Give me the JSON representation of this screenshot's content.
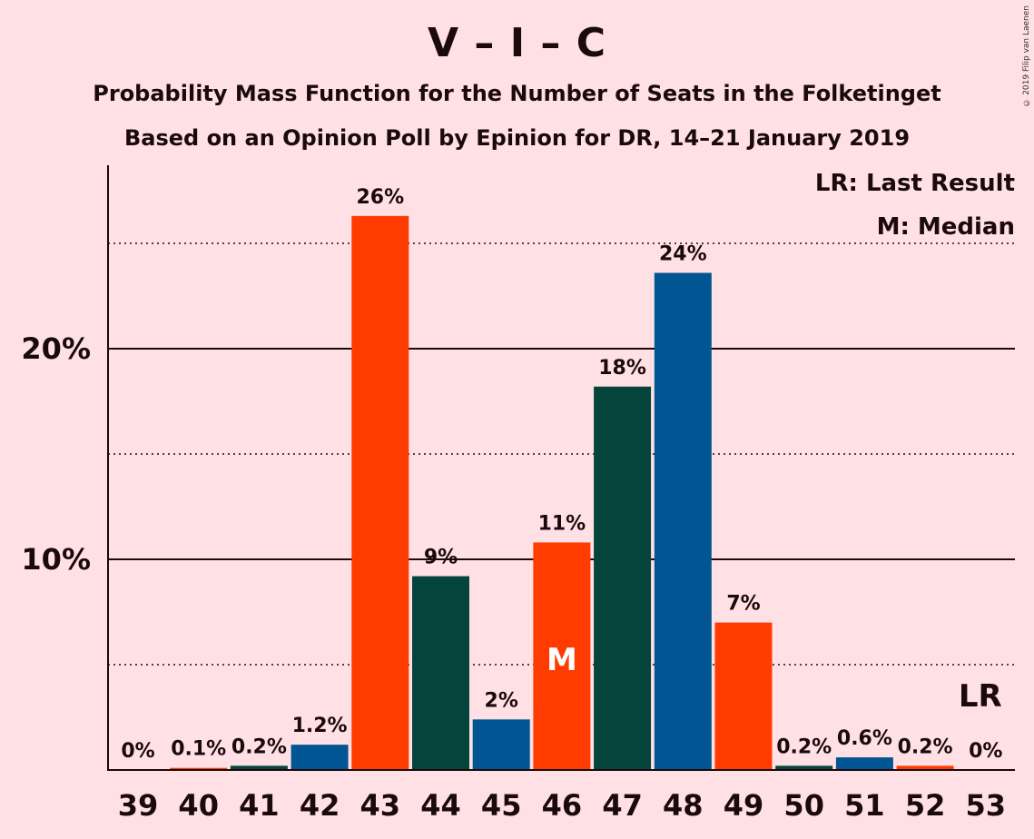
{
  "header": {
    "title": "V – I – C",
    "subtitle_1": "Probability Mass Function for the Number of Seats in the Folketinget",
    "subtitle_2": "Based on an Opinion Poll by Epinion for DR, 14–21 January 2019",
    "copyright": "© 2019 Filip van Laenen"
  },
  "legend": {
    "last_result": "LR: Last Result",
    "median": "M: Median"
  },
  "markers": {
    "median_label": "M",
    "median_seat": "46",
    "last_result_label": "LR",
    "last_result_seat": "53"
  },
  "colors": {
    "background": "#ffe1e5",
    "orange_red": "#ff3b00",
    "dark_green": "#05443a",
    "blue": "#015593"
  },
  "chart_data": {
    "type": "bar",
    "categories": [
      "39",
      "40",
      "41",
      "42",
      "43",
      "44",
      "45",
      "46",
      "47",
      "48",
      "49",
      "50",
      "51",
      "52",
      "53"
    ],
    "values": [
      0,
      0.1,
      0.2,
      1.2,
      26.3,
      9.2,
      2.4,
      10.8,
      18.2,
      23.6,
      7.0,
      0.2,
      0.6,
      0.2,
      0
    ],
    "data_labels": [
      "0%",
      "0.1%",
      "0.2%",
      "1.2%",
      "26%",
      "9%",
      "2%",
      "11%",
      "18%",
      "24%",
      "7%",
      "0.2%",
      "0.6%",
      "0.2%",
      "0%"
    ],
    "bar_colors": [
      "orange_red",
      "orange_red",
      "dark_green",
      "blue",
      "orange_red",
      "dark_green",
      "blue",
      "orange_red",
      "dark_green",
      "blue",
      "orange_red",
      "dark_green",
      "blue",
      "orange_red",
      "dark_green"
    ],
    "y_ticks": [
      {
        "value": 10,
        "label": "10%"
      },
      {
        "value": 20,
        "label": "20%"
      }
    ],
    "dotted_gridlines": [
      5,
      15,
      25
    ],
    "solid_gridlines": [
      10,
      20
    ],
    "ylim": [
      0,
      28.7
    ],
    "xlabel": "",
    "ylabel": "",
    "legend_position": "top-right"
  }
}
